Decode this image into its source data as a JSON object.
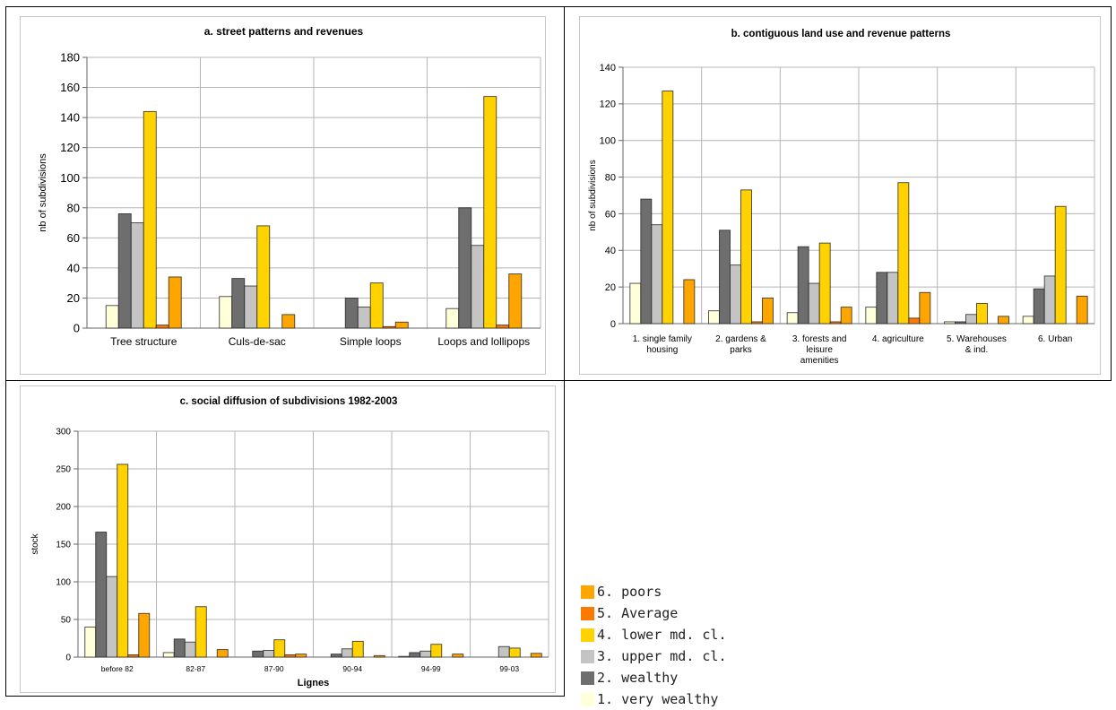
{
  "colors": {
    "very_wealthy": "#ffffd9",
    "wealthy": "#6e6e6e",
    "upper_md": "#c4c4c4",
    "lower_md": "#ffd200",
    "average": "#ff7800",
    "poors": "#ffa500"
  },
  "legend": [
    {
      "label": "6. poors",
      "color": "#ffa500"
    },
    {
      "label": "5. Average",
      "color": "#ff7800"
    },
    {
      "label": "4. lower md. cl.",
      "color": "#ffd200"
    },
    {
      "label": "3. upper md. cl.",
      "color": "#c4c4c4"
    },
    {
      "label": "2. wealthy",
      "color": "#6e6e6e"
    },
    {
      "label": "1. very wealthy",
      "color": "#ffffd9"
    }
  ],
  "chart_data": [
    {
      "id": "a",
      "type": "bar",
      "title": "a. street patterns and revenues",
      "xlabel": "",
      "ylabel": "nb of subdivisions",
      "ylim": [
        0,
        180
      ],
      "yticks": [
        0,
        20,
        40,
        60,
        80,
        100,
        120,
        140,
        160,
        180
      ],
      "grid": true,
      "categories": [
        [
          "Tree structure"
        ],
        [
          "Culs-de-sac"
        ],
        [
          "Simple loops"
        ],
        [
          "Loops and lollipops"
        ]
      ],
      "series": [
        {
          "name": "1. very wealthy",
          "values": [
            15,
            21,
            0,
            13
          ]
        },
        {
          "name": "2. wealthy",
          "values": [
            76,
            33,
            20,
            80
          ]
        },
        {
          "name": "3. upper md. cl.",
          "values": [
            70,
            28,
            14,
            55
          ]
        },
        {
          "name": "4. lower md. cl.",
          "values": [
            144,
            68,
            30,
            154
          ]
        },
        {
          "name": "5. Average",
          "values": [
            2,
            0,
            1,
            2
          ]
        },
        {
          "name": "6. poors",
          "values": [
            34,
            9,
            4,
            36
          ]
        }
      ]
    },
    {
      "id": "b",
      "type": "bar",
      "title": "b. contiguous land use and revenue patterns",
      "xlabel": "",
      "ylabel": "nb of subdivisions",
      "ylim": [
        0,
        140
      ],
      "yticks": [
        0,
        20,
        40,
        60,
        80,
        100,
        120,
        140
      ],
      "grid": true,
      "categories": [
        [
          "1. single family",
          "housing"
        ],
        [
          "2. gardens &",
          "parks"
        ],
        [
          "3. forests and",
          "leisure",
          "amenities"
        ],
        [
          "4. agriculture"
        ],
        [
          "5. Warehouses",
          "& ind."
        ],
        [
          "6. Urban"
        ]
      ],
      "series": [
        {
          "name": "1. very wealthy",
          "values": [
            22,
            7,
            6,
            9,
            1,
            4
          ]
        },
        {
          "name": "2. wealthy",
          "values": [
            68,
            51,
            42,
            28,
            1,
            19
          ]
        },
        {
          "name": "3. upper md. cl.",
          "values": [
            54,
            32,
            22,
            28,
            5,
            26
          ]
        },
        {
          "name": "4. lower md. cl.",
          "values": [
            127,
            73,
            44,
            77,
            11,
            64
          ]
        },
        {
          "name": "5. Average",
          "values": [
            0,
            1,
            1,
            3,
            0,
            0
          ]
        },
        {
          "name": "6. poors",
          "values": [
            24,
            14,
            9,
            17,
            4,
            15
          ]
        }
      ]
    },
    {
      "id": "c",
      "type": "bar",
      "title": "c. social diffusion of subdivisions 1982-2003",
      "xlabel": "Lignes",
      "ylabel": "stock",
      "ylim": [
        0,
        300
      ],
      "yticks": [
        0,
        50,
        100,
        150,
        200,
        250,
        300
      ],
      "grid": true,
      "categories": [
        [
          "before 82"
        ],
        [
          "82-87"
        ],
        [
          "87-90"
        ],
        [
          "90-94"
        ],
        [
          "94-99"
        ],
        [
          "99-03"
        ]
      ],
      "series": [
        {
          "name": "1. very wealthy",
          "values": [
            40,
            6,
            0,
            0,
            1,
            0
          ]
        },
        {
          "name": "2. wealthy",
          "values": [
            166,
            24,
            8,
            4,
            6,
            0
          ]
        },
        {
          "name": "3. upper md. cl.",
          "values": [
            107,
            20,
            9,
            11,
            8,
            14
          ]
        },
        {
          "name": "4. lower md. cl.",
          "values": [
            256,
            67,
            23,
            21,
            17,
            12
          ]
        },
        {
          "name": "5. Average",
          "values": [
            3,
            0,
            3,
            0,
            0,
            0
          ]
        },
        {
          "name": "6. poors",
          "values": [
            58,
            10,
            4,
            2,
            4,
            5
          ]
        }
      ]
    }
  ]
}
